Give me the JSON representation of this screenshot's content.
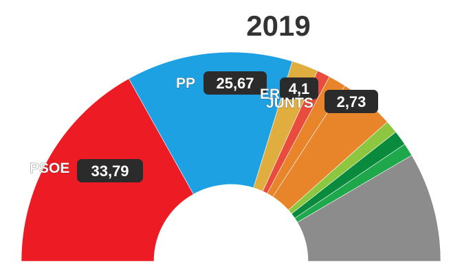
{
  "chart_data": {
    "type": "pie",
    "variant": "half-donut",
    "title": "2019",
    "series": [
      {
        "name": "PSOE",
        "value": 33.79,
        "value_label": "33,79",
        "color": "#ED1C24",
        "show_label": true
      },
      {
        "name": "PP",
        "value": 25.67,
        "value_label": "25,67",
        "color": "#1DA1E2",
        "show_label": true
      },
      {
        "name": "ERC",
        "value": 4.1,
        "value_label": "4,1",
        "color": "#E0AE3F",
        "show_label": true
      },
      {
        "name": "",
        "value": 2.0,
        "color": "#E94B3C",
        "show_label": false
      },
      {
        "name": "JUNTS",
        "value": 2.73,
        "value_label": "2,73",
        "color": "#E8852B",
        "show_label": true
      },
      {
        "name": "",
        "value": 8.5,
        "color": "#E8852B",
        "show_label": false
      },
      {
        "name": "",
        "value": 2.0,
        "color": "#8DC63F",
        "show_label": false
      },
      {
        "name": "",
        "value": 2.3,
        "color": "#0A8A3C",
        "show_label": false
      },
      {
        "name": "",
        "value": 2.0,
        "color": "#1EA84B",
        "show_label": false
      },
      {
        "name": "",
        "value": 16.91,
        "color": "#8C8C8C",
        "show_label": false
      }
    ]
  }
}
